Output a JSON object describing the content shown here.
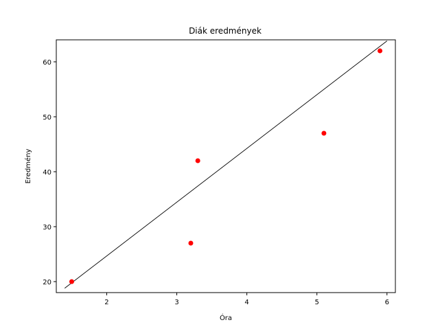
{
  "chart_data": {
    "type": "scatter",
    "title": "Diák eredmények",
    "xlabel": "Óra",
    "ylabel": "Eredmény",
    "xlim": [
      1.28,
      6.12
    ],
    "ylim": [
      18.0,
      64.0
    ],
    "xticks": [
      2,
      3,
      4,
      5,
      6
    ],
    "yticks": [
      20,
      30,
      40,
      50,
      60
    ],
    "grid": false,
    "points": [
      {
        "x": 1.5,
        "y": 20
      },
      {
        "x": 3.2,
        "y": 27
      },
      {
        "x": 3.3,
        "y": 42
      },
      {
        "x": 5.1,
        "y": 47
      },
      {
        "x": 5.9,
        "y": 62
      }
    ],
    "trendline": {
      "x": [
        1.4,
        6.0
      ],
      "y": [
        18.8,
        63.8
      ]
    },
    "colors": {
      "points": "#ff0000",
      "trendline": "#000000"
    }
  }
}
